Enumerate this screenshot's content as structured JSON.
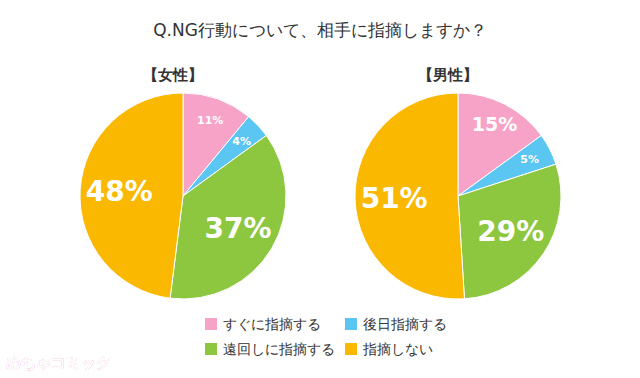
{
  "chart_data": {
    "type": "pie",
    "title": "Q.NG行動について、相手に指摘しますか？",
    "categories": [
      "すぐに指摘する",
      "後日指摘する",
      "遠回しに指摘する",
      "指摘しない"
    ],
    "colors": [
      "#f7a3c8",
      "#5cc6f2",
      "#8dc63f",
      "#fbb800"
    ],
    "series": [
      {
        "name": "【女性】",
        "values": [
          11,
          4,
          37,
          48
        ],
        "value_labels": [
          "11%",
          "4%",
          "37%",
          "48%"
        ]
      },
      {
        "name": "【男性】",
        "values": [
          15,
          5,
          29,
          51
        ],
        "value_labels": [
          "15%",
          "5%",
          "29%",
          "51%"
        ]
      }
    ],
    "data_labels": true,
    "legend": "bottom",
    "annotations": [
      "めちゃコミック"
    ]
  }
}
